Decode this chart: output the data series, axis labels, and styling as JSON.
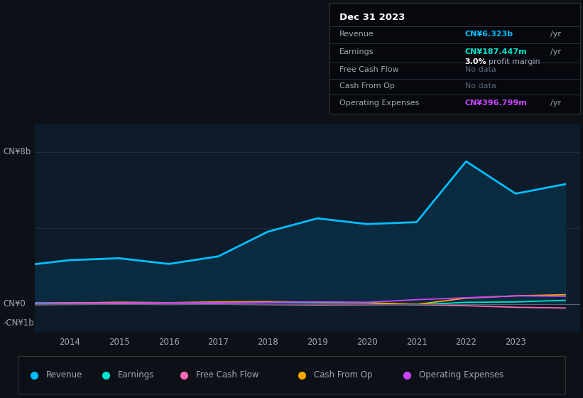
{
  "bg_color": "#0d1117",
  "plot_bg_color": "#0d1b2a",
  "years": [
    2013,
    2014,
    2015,
    2016,
    2017,
    2018,
    2019,
    2020,
    2021,
    2022,
    2023,
    2024.0
  ],
  "revenue": [
    2.0,
    2.3,
    2.4,
    2.1,
    2.5,
    3.8,
    4.5,
    4.2,
    4.3,
    7.5,
    5.8,
    6.3
  ],
  "earnings": [
    0.05,
    0.05,
    0.07,
    0.06,
    0.07,
    0.08,
    0.05,
    0.04,
    -0.05,
    0.08,
    0.1,
    0.187
  ],
  "free_cash_flow": [
    -0.05,
    -0.03,
    -0.02,
    -0.03,
    -0.02,
    -0.04,
    -0.06,
    -0.05,
    -0.04,
    -0.1,
    -0.18,
    -0.22
  ],
  "cash_from_op": [
    0.01,
    0.04,
    0.08,
    0.06,
    0.1,
    0.12,
    0.08,
    0.06,
    -0.03,
    0.3,
    0.42,
    0.48
  ],
  "operating_expenses": [
    0.01,
    0.04,
    0.05,
    0.06,
    0.06,
    0.08,
    0.1,
    0.08,
    0.22,
    0.32,
    0.42,
    0.4
  ],
  "revenue_color": "#00bfff",
  "earnings_color": "#00e5cc",
  "free_cash_flow_color": "#ff69b4",
  "cash_from_op_color": "#ffa500",
  "operating_expenses_color": "#cc44ff",
  "revenue_fill_color": "#0a2a40",
  "grid_color": "#1e2d3d",
  "text_color": "#a0a8b0",
  "nodata_color": "#556677",
  "cyan_color": "#00bfff",
  "teal_color": "#00e5cc",
  "purple_color": "#cc44ff",
  "tick_labels": [
    "2014",
    "2015",
    "2016",
    "2017",
    "2018",
    "2019",
    "2020",
    "2021",
    "2022",
    "2023"
  ],
  "tick_positions": [
    2014,
    2015,
    2016,
    2017,
    2018,
    2019,
    2020,
    2021,
    2022,
    2023
  ],
  "xlim": [
    2013.3,
    2024.3
  ],
  "ylim_min": -1.5,
  "ylim_max": 9.5
}
